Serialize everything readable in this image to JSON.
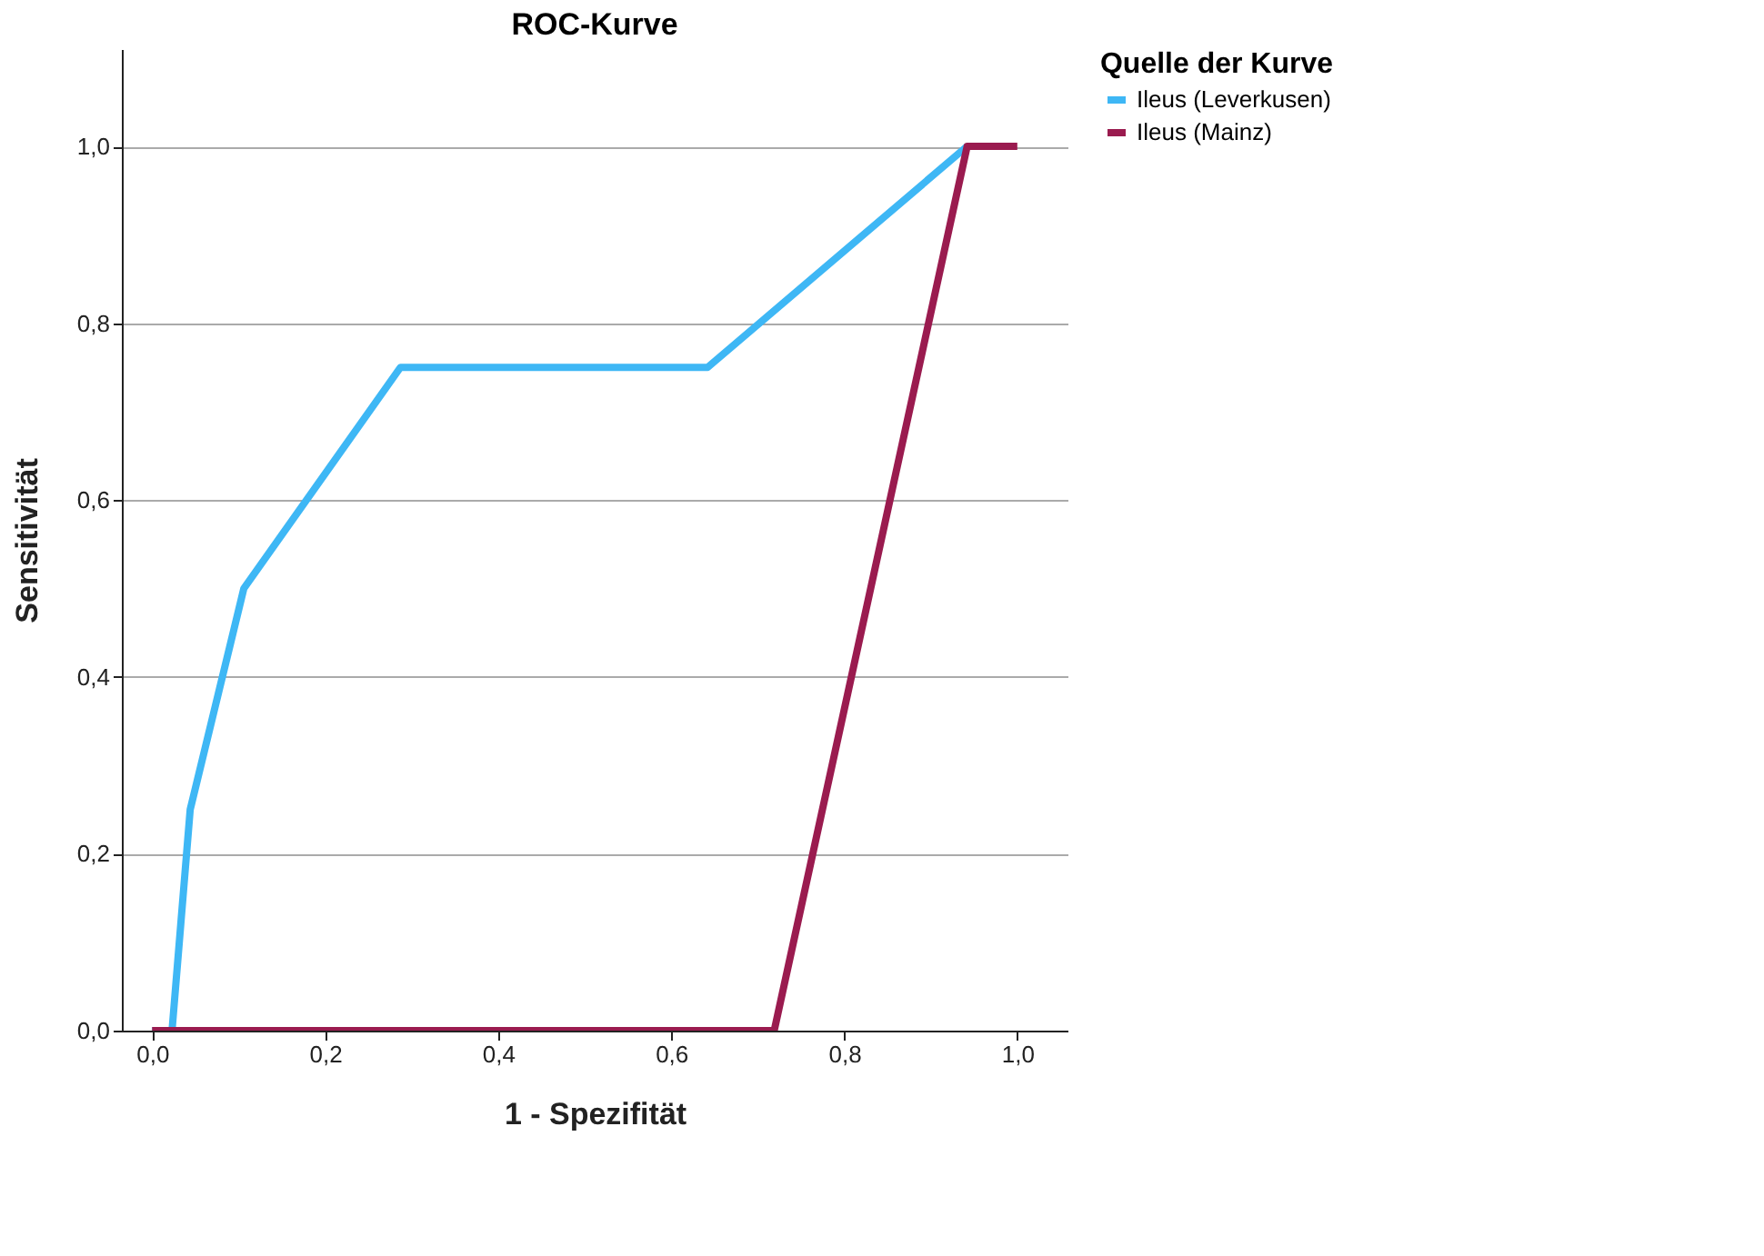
{
  "chart_data": {
    "type": "line",
    "title": "ROC-Kurve",
    "xlabel": "1 - Spezifität",
    "ylabel": "Sensitivität",
    "legend_title": "Quelle der Kurve",
    "legend": "top right",
    "grid": "y",
    "line_style": "solid",
    "marker": "none",
    "xlim": [
      -0.035,
      1.058
    ],
    "ylim": [
      0,
      1.11
    ],
    "xticks": [
      {
        "value": 0,
        "label": "0,0"
      },
      {
        "value": 0.2,
        "label": "0,2"
      },
      {
        "value": 0.4,
        "label": "0,4"
      },
      {
        "value": 0.6,
        "label": "0,6"
      },
      {
        "value": 0.8,
        "label": "0,8"
      },
      {
        "value": 1,
        "label": "1,0"
      }
    ],
    "yticks": [
      {
        "value": 0,
        "label": "0,0"
      },
      {
        "value": 0.2,
        "label": "0,2"
      },
      {
        "value": 0.4,
        "label": "0,4"
      },
      {
        "value": 0.6,
        "label": "0,6"
      },
      {
        "value": 0.8,
        "label": "0,8"
      },
      {
        "value": 1,
        "label": "1,0"
      }
    ],
    "series": [
      {
        "name": "Ileus (Leverkusen)",
        "color": "#3eb7f5",
        "x": [
          0,
          0.023,
          0.044,
          0.106,
          0.287,
          0.642,
          0.942
        ],
        "values": [
          0,
          0,
          0.25,
          0.5,
          0.75,
          0.75,
          1
        ]
      },
      {
        "name": "Ileus (Mainz)",
        "color": "#9a1b4f",
        "x": [
          0,
          0.719,
          0.942,
          1
        ],
        "values": [
          0,
          0,
          1,
          1
        ]
      }
    ]
  }
}
